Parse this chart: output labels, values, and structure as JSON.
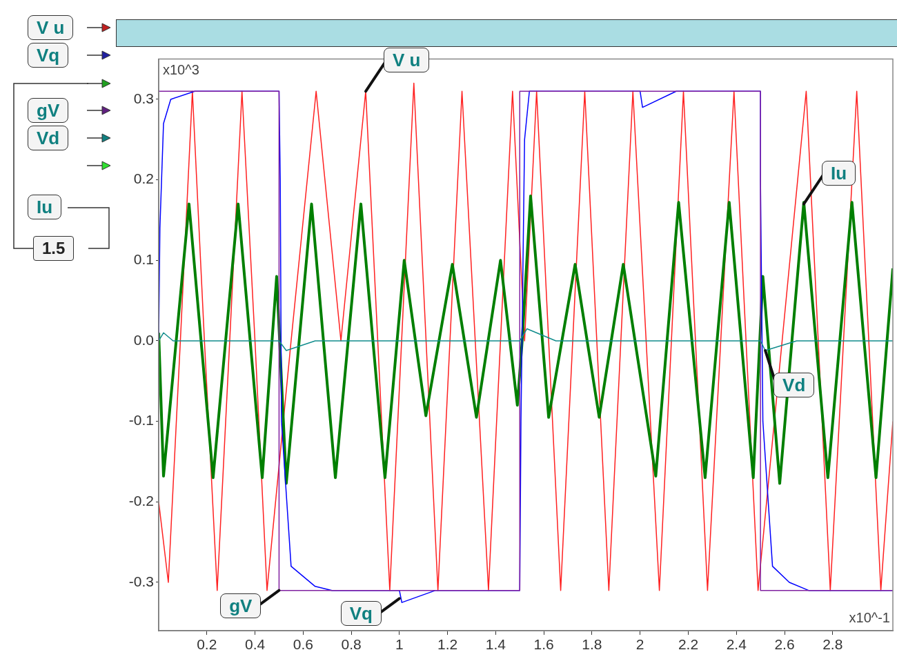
{
  "chart_data": {
    "type": "line",
    "xlabel": "x10^-1",
    "ylabel": "x10^3",
    "xlim": [
      0,
      3.05
    ],
    "ylim": [
      -0.36,
      0.35
    ],
    "xticks": [
      0.2,
      0.4,
      0.6,
      0.8,
      1.0,
      1.2,
      1.4,
      1.6,
      1.8,
      2.0,
      2.2,
      2.4,
      2.6,
      2.8
    ],
    "yticks": [
      -0.3,
      -0.2,
      -0.1,
      {
        "value": 0,
        "label": "0.0"
      },
      0.1,
      0.2,
      0.3
    ],
    "marker": "none",
    "line_style": "solid",
    "series": [
      {
        "color": "#ff2020",
        "x": [
          0,
          0.04,
          0.09,
          0.14,
          0.19,
          0.243,
          0.295,
          0.346,
          0.4,
          0.45,
          0.55,
          0.654,
          0.757,
          0.86,
          0.96,
          1.06,
          1.16,
          1.26,
          1.37,
          1.47,
          1.52,
          1.57,
          1.67,
          1.77,
          1.87,
          1.97,
          2.08,
          2.18,
          2.28,
          2.39,
          2.49,
          2.59,
          2.69,
          2.79,
          2.9,
          3.0,
          3.05
        ],
        "values": [
          -0.2,
          -0.3,
          0,
          0.31,
          0,
          -0.31,
          0,
          0.31,
          0,
          -0.31,
          0,
          0.31,
          0,
          0.31,
          -0.31,
          0.32,
          -0.31,
          0.31,
          -0.31,
          0.31,
          0,
          0.31,
          -0.31,
          0.31,
          -0.31,
          0.31,
          -0.31,
          0.31,
          -0.31,
          0.31,
          -0.31,
          0,
          0.31,
          -0.31,
          0.31,
          -0.31,
          -0.1
        ]
      },
      {
        "color": "#007f00",
        "x": [
          0,
          0.02,
          0.126,
          0.226,
          0.33,
          0.43,
          0.49,
          0.53,
          0.635,
          0.734,
          0.84,
          0.94,
          1.02,
          1.11,
          1.22,
          1.32,
          1.42,
          1.49,
          1.51,
          1.545,
          1.62,
          1.73,
          1.83,
          1.93,
          2.065,
          2.16,
          2.27,
          2.37,
          2.47,
          2.51,
          2.58,
          2.68,
          2.78,
          2.88,
          2.98,
          3.05
        ],
        "values": [
          0.01,
          -0.168,
          0.17,
          -0.17,
          0.17,
          -0.17,
          0.08,
          -0.177,
          0.17,
          -0.17,
          0.17,
          -0.17,
          0.1,
          -0.093,
          0.095,
          -0.095,
          0.1,
          -0.08,
          0,
          0.18,
          -0.095,
          0.095,
          -0.095,
          0.095,
          -0.168,
          0.172,
          -0.17,
          0.172,
          -0.17,
          0.08,
          -0.177,
          0.172,
          -0.17,
          0.172,
          -0.17,
          0.09
        ]
      },
      {
        "color": "#0000ff",
        "x": [
          0,
          0.005,
          0.02,
          0.05,
          0.15,
          0.5,
          0.505,
          0.51,
          0.55,
          0.65,
          0.72,
          1.0,
          1.01,
          1.15,
          1.5,
          1.505,
          1.52,
          1.54,
          2.0,
          2.01,
          2.15,
          2.5,
          2.5,
          2.51,
          2.55,
          2.62,
          2.7,
          3.05
        ],
        "values": [
          0,
          0.14,
          0.27,
          0.3,
          0.31,
          0.31,
          0.2,
          -0.1,
          -0.28,
          -0.305,
          -0.31,
          -0.31,
          -0.325,
          -0.31,
          -0.31,
          -0.1,
          0.25,
          0.31,
          0.31,
          0.29,
          0.31,
          0.31,
          0.2,
          -0.1,
          -0.28,
          -0.3,
          -0.31,
          -0.31
        ]
      },
      {
        "color": "#8020a0",
        "x": [
          0,
          0.5,
          0.5,
          1.5,
          1.5,
          2.5,
          2.5,
          3.05
        ],
        "values": [
          0.31,
          0.31,
          -0.31,
          -0.31,
          0.31,
          0.31,
          -0.31,
          -0.31
        ]
      },
      {
        "color": "#108c8c",
        "x": [
          0,
          0.02,
          0.06,
          0.5,
          0.53,
          0.65,
          1.5,
          1.53,
          1.65,
          2.5,
          2.52,
          2.65,
          3.05
        ],
        "values": [
          0,
          0.01,
          0,
          0,
          -0.012,
          0,
          0,
          0.015,
          0,
          0,
          -0.012,
          0,
          0
        ]
      }
    ],
    "annotations": [
      {
        "text": "V u",
        "x": 0.86,
        "y": 0.31
      },
      {
        "text": "gV",
        "x": 0.5,
        "y": -0.31
      },
      {
        "text": "Vq",
        "x": 1.0,
        "y": -0.32
      },
      {
        "text": "Vd",
        "x": 2.52,
        "y": -0.012
      },
      {
        "text": "Iu",
        "x": 2.68,
        "y": 0.17
      },
      "V u",
      "Vq",
      "gV",
      "Vd",
      "Iu",
      "1.5"
    ]
  }
}
